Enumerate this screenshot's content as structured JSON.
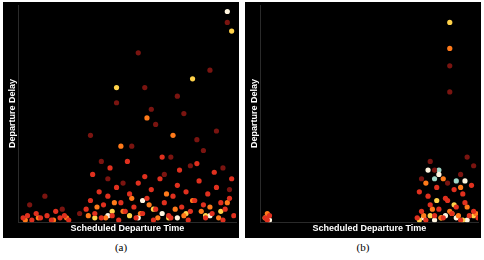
{
  "chart_data": [
    {
      "type": "scatter",
      "caption": "(a)",
      "x_label": "Scheduled Departure Time",
      "y_label": "Departure Delay",
      "xlim": [
        0,
        100
      ],
      "ylim": [
        0,
        100
      ],
      "grid": false,
      "tick_labels": false,
      "series": [
        {
          "color": "#7a1410",
          "x": [
            5,
            12,
            20,
            33,
            38,
            45,
            52,
            58,
            63,
            70,
            76,
            82,
            88,
            94,
            41,
            55,
            67,
            73,
            85,
            97,
            28,
            48,
            61,
            79,
            91,
            96
          ],
          "values": [
            8,
            12,
            6,
            40,
            28,
            55,
            35,
            62,
            45,
            30,
            50,
            38,
            70,
            25,
            20,
            78,
            22,
            58,
            33,
            15,
            4,
            18,
            52,
            26,
            42,
            92
          ]
        },
        {
          "color": "#e0301e",
          "x": [
            2,
            4,
            6,
            8,
            10,
            13,
            15,
            17,
            19,
            21,
            23,
            31,
            33,
            35,
            37,
            39,
            41,
            43,
            45,
            47,
            49,
            51,
            53,
            55,
            57,
            59,
            61,
            63,
            65,
            67,
            69,
            71,
            73,
            75,
            77,
            79,
            81,
            83,
            85,
            87,
            89,
            91,
            93,
            95,
            97,
            99,
            34,
            42,
            50,
            58,
            66,
            74,
            82,
            90,
            98,
            38,
            46,
            54,
            62,
            70,
            78,
            86,
            94
          ],
          "values": [
            2,
            3,
            1,
            4,
            2,
            3,
            1,
            5,
            2,
            3,
            1,
            6,
            10,
            4,
            14,
            8,
            12,
            3,
            16,
            9,
            5,
            13,
            7,
            18,
            4,
            11,
            15,
            6,
            20,
            9,
            3,
            12,
            17,
            7,
            14,
            5,
            10,
            19,
            8,
            13,
            4,
            16,
            9,
            6,
            11,
            3,
            22,
            25,
            28,
            21,
            30,
            24,
            27,
            23,
            20,
            2,
            1,
            2,
            1,
            2,
            1,
            2,
            1
          ]
        },
        {
          "color": "#ff7a1a",
          "x": [
            32,
            36,
            40,
            44,
            48,
            52,
            56,
            60,
            64,
            68,
            72,
            76,
            80,
            84,
            88,
            92,
            96,
            3,
            9,
            16,
            22,
            47,
            71,
            59
          ],
          "values": [
            3,
            7,
            2,
            9,
            5,
            11,
            4,
            8,
            2,
            13,
            6,
            3,
            10,
            5,
            7,
            2,
            9,
            1,
            2,
            1,
            2,
            35,
            40,
            48
          ]
        },
        {
          "color": "#ffd24a",
          "x": [
            35,
            43,
            51,
            62,
            69,
            77,
            86,
            93,
            45,
            80,
            98
          ],
          "values": [
            2,
            5,
            3,
            6,
            2,
            4,
            3,
            5,
            62,
            66,
            88
          ]
        },
        {
          "color": "#fff5e0",
          "x": [
            41,
            55,
            66,
            73,
            88,
            57,
            96
          ],
          "values": [
            3,
            2,
            4,
            2,
            3,
            10,
            97
          ]
        }
      ]
    },
    {
      "type": "scatter",
      "caption": "(b)",
      "x_label": "Scheduled Departure Time",
      "y_label": "Departure Delay",
      "xlim": [
        0,
        100
      ],
      "ylim": [
        0,
        100
      ],
      "grid": false,
      "tick_labels": false,
      "series": [
        {
          "color": "#7a1410",
          "x": [
            74,
            80,
            86,
            92,
            98,
            87,
            87,
            78,
            95
          ],
          "values": [
            20,
            24,
            18,
            22,
            26,
            60,
            72,
            28,
            30
          ]
        },
        {
          "color": "#e0301e",
          "x": [
            2,
            3,
            4,
            72,
            74,
            76,
            78,
            80,
            82,
            84,
            86,
            88,
            90,
            92,
            94,
            96,
            98,
            100,
            73,
            77,
            81,
            85,
            89,
            93,
            97
          ],
          "values": [
            2,
            1,
            3,
            2,
            5,
            1,
            8,
            3,
            6,
            2,
            10,
            4,
            7,
            1,
            9,
            3,
            5,
            2,
            14,
            12,
            16,
            11,
            15,
            13,
            17
          ]
        },
        {
          "color": "#ff7a1a",
          "x": [
            3,
            75,
            79,
            83,
            87,
            91,
            95,
            99,
            76,
            84,
            92,
            87
          ],
          "values": [
            4,
            3,
            6,
            2,
            5,
            3,
            7,
            4,
            18,
            20,
            16,
            80
          ]
        },
        {
          "color": "#ffd24a",
          "x": [
            2,
            73,
            78,
            83,
            88,
            93,
            98,
            81,
            89,
            87
          ],
          "values": [
            2,
            1,
            3,
            2,
            4,
            1,
            3,
            10,
            8,
            92
          ]
        },
        {
          "color": "#fff5e0",
          "x": [
            4,
            75,
            80,
            85,
            90,
            95,
            82,
            94,
            77
          ],
          "values": [
            1,
            2,
            1,
            3,
            2,
            1,
            22,
            19,
            24
          ]
        },
        {
          "color": "#9fd8c8",
          "x": [
            80,
            82,
            90
          ],
          "values": [
            20,
            24,
            19
          ]
        }
      ]
    }
  ]
}
